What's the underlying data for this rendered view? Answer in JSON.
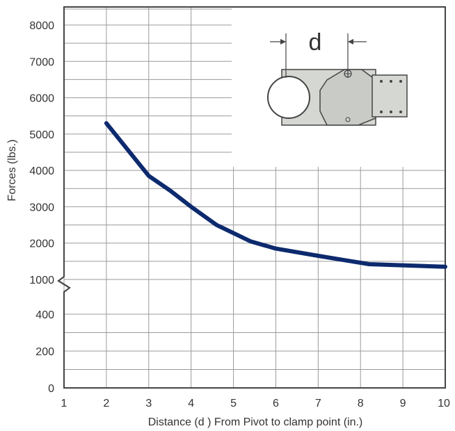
{
  "chart_data": {
    "type": "line",
    "xlabel": "Distance (d ) From Pivot to clamp point (in.)",
    "ylabel": "Forces (lbs.)",
    "x_ticks": [
      "1",
      "2",
      "3",
      "4",
      "5",
      "6",
      "7",
      "8",
      "9",
      "10"
    ],
    "y_ticks": [
      "0",
      "200",
      "400",
      "1000",
      "2000",
      "3000",
      "4000",
      "5000",
      "6000",
      "7000",
      "8000"
    ],
    "y_axis_break": "between 400 and 1000",
    "grid": true,
    "xlim": [
      1,
      10
    ],
    "series": [
      {
        "color": "#0d2a6e",
        "x": [
          2,
          3,
          3.5,
          4,
          4.6,
          5.4,
          6,
          7,
          8.2,
          10
        ],
        "y": [
          5300,
          3850,
          3450,
          3000,
          2500,
          2050,
          1850,
          1650,
          1420,
          1350
        ]
      }
    ],
    "inset_diagram": {
      "label": "d"
    }
  }
}
